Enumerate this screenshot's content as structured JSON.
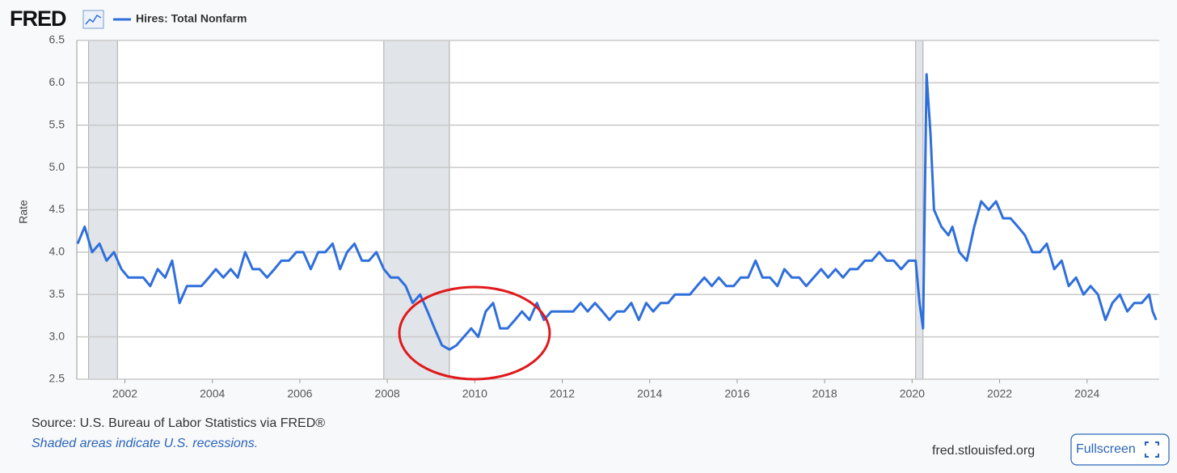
{
  "brand": "FRED",
  "chart_data": {
    "type": "line",
    "ylabel": "Rate",
    "series": [
      {
        "name": "Hires: Total Nonfarm",
        "color": "#2f6fdc",
        "values": [
          4.1,
          4.3,
          4.0,
          4.1,
          3.9,
          4.0,
          3.8,
          3.7,
          3.7,
          3.7,
          3.6,
          3.8,
          3.7,
          3.9,
          3.4,
          3.6,
          3.6,
          3.6,
          3.7,
          3.8,
          3.7,
          3.8,
          3.7,
          4.0,
          3.8,
          3.8,
          3.7,
          3.8,
          3.9,
          3.9,
          4.0,
          4.0,
          3.8,
          4.0,
          4.0,
          4.1,
          3.8,
          4.0,
          4.1,
          3.9,
          3.9,
          4.0,
          3.8,
          3.7,
          3.7,
          3.6,
          3.4,
          3.5,
          3.3,
          3.1,
          2.9,
          2.85,
          2.9,
          3.0,
          3.1,
          3.0,
          3.3,
          3.4,
          3.1,
          3.1,
          3.2,
          3.3,
          3.2,
          3.4,
          3.2,
          3.3,
          3.3,
          3.3,
          3.3,
          3.4,
          3.3,
          3.4,
          3.3,
          3.2,
          3.3,
          3.3,
          3.4,
          3.2,
          3.4,
          3.3,
          3.4,
          3.4,
          3.5,
          3.5,
          3.5,
          3.6,
          3.7,
          3.6,
          3.7,
          3.6,
          3.6,
          3.7,
          3.7,
          3.9,
          3.7,
          3.7,
          3.6,
          3.8,
          3.7,
          3.7,
          3.6,
          3.7,
          3.8,
          3.7,
          3.8,
          3.7,
          3.8,
          3.8,
          3.9,
          3.9,
          4.0,
          3.9,
          3.9,
          3.8,
          3.9,
          3.9,
          3.4,
          3.1,
          6.1,
          5.4,
          4.5,
          4.3,
          4.2,
          4.3,
          4.0,
          3.9,
          4.3,
          4.6,
          4.5,
          4.6,
          4.4,
          4.4,
          4.3,
          4.2,
          4.0,
          4.0,
          4.1,
          3.8,
          3.9,
          3.6,
          3.7,
          3.5,
          3.6,
          3.5,
          3.2,
          3.4,
          3.5,
          3.3,
          3.4,
          3.4,
          3.5,
          3.3,
          3.2
        ]
      }
    ],
    "x": [
      2000.92,
      2001.08,
      2001.25,
      2001.42,
      2001.58,
      2001.75,
      2001.92,
      2002.08,
      2002.25,
      2002.42,
      2002.58,
      2002.75,
      2002.92,
      2003.08,
      2003.25,
      2003.42,
      2003.58,
      2003.75,
      2003.92,
      2004.08,
      2004.25,
      2004.42,
      2004.58,
      2004.75,
      2004.92,
      2005.08,
      2005.25,
      2005.42,
      2005.58,
      2005.75,
      2005.92,
      2006.08,
      2006.25,
      2006.42,
      2006.58,
      2006.75,
      2006.92,
      2007.08,
      2007.25,
      2007.42,
      2007.58,
      2007.75,
      2007.92,
      2008.08,
      2008.25,
      2008.42,
      2008.58,
      2008.75,
      2008.92,
      2009.08,
      2009.25,
      2009.42,
      2009.58,
      2009.75,
      2009.92,
      2010.08,
      2010.25,
      2010.42,
      2010.58,
      2010.75,
      2010.92,
      2011.08,
      2011.25,
      2011.42,
      2011.58,
      2011.75,
      2011.92,
      2012.08,
      2012.25,
      2012.42,
      2012.58,
      2012.75,
      2012.92,
      2013.08,
      2013.25,
      2013.42,
      2013.58,
      2013.75,
      2013.92,
      2014.08,
      2014.25,
      2014.42,
      2014.58,
      2014.75,
      2014.92,
      2015.08,
      2015.25,
      2015.42,
      2015.58,
      2015.75,
      2015.92,
      2016.08,
      2016.25,
      2016.42,
      2016.58,
      2016.75,
      2016.92,
      2017.08,
      2017.25,
      2017.42,
      2017.58,
      2017.75,
      2017.92,
      2018.08,
      2018.25,
      2018.42,
      2018.58,
      2018.75,
      2018.92,
      2019.08,
      2019.25,
      2019.42,
      2019.58,
      2019.75,
      2019.92,
      2020.08,
      2020.17,
      2020.25,
      2020.33,
      2020.42,
      2020.5,
      2020.67,
      2020.83,
      2020.92,
      2021.08,
      2021.25,
      2021.42,
      2021.58,
      2021.75,
      2021.92,
      2022.08,
      2022.25,
      2022.42,
      2022.58,
      2022.75,
      2022.92,
      2023.08,
      2023.25,
      2023.42,
      2023.58,
      2023.75,
      2023.92,
      2024.08,
      2024.25,
      2024.42,
      2024.58,
      2024.75,
      2024.92,
      2025.08,
      2025.25,
      2025.42,
      2025.5,
      2025.58
    ],
    "xlim": [
      2000.9,
      2025.65
    ],
    "xticks": [
      2002,
      2004,
      2006,
      2008,
      2010,
      2012,
      2014,
      2016,
      2018,
      2020,
      2022,
      2024
    ],
    "ylim": [
      2.5,
      6.5
    ],
    "yticks": [
      {
        "value": 2.5,
        "label": "2.5"
      },
      {
        "value": 3,
        "label": "3.0"
      },
      3.5,
      {
        "value": 4,
        "label": "4.0"
      },
      4.5,
      {
        "value": 5,
        "label": "5.0"
      },
      5.5,
      {
        "value": 6,
        "label": "6.0"
      },
      6.5
    ],
    "grid": true,
    "recessions": [
      [
        2001.17,
        2001.83
      ],
      [
        2007.92,
        2009.42
      ],
      [
        2020.08,
        2020.25
      ]
    ]
  },
  "footer": {
    "source": "Source: U.S. Bureau of Labor Statistics via FRED®",
    "note": "Shaded areas indicate U.S. recessions.",
    "site": "fred.stlouisfed.org",
    "button": "Fullscreen"
  }
}
